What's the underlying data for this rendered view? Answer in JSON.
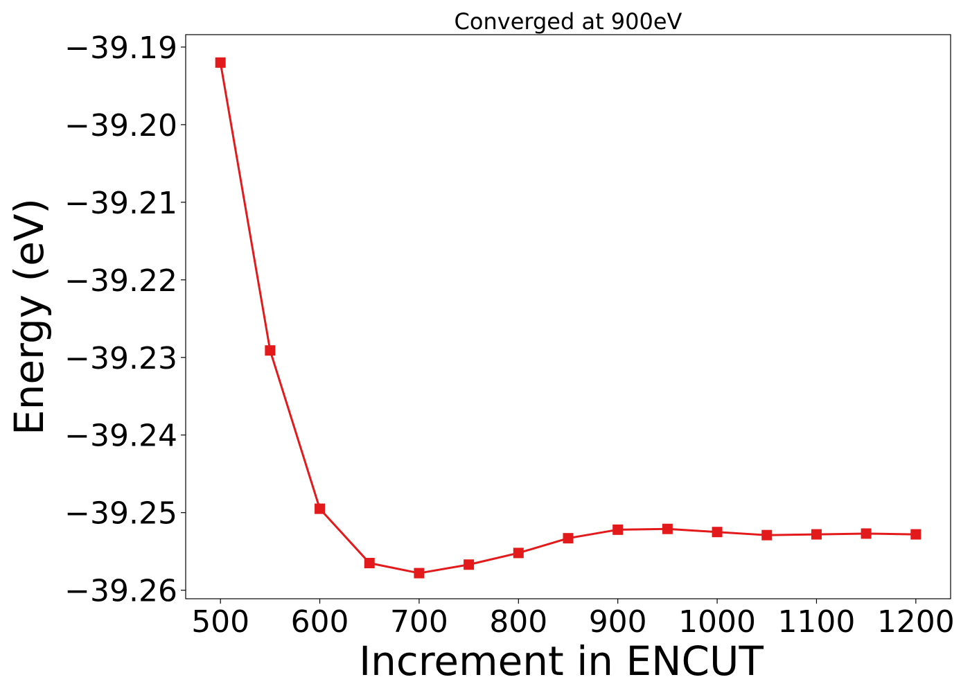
{
  "chart_data": {
    "type": "line",
    "title": "Converged at 900eV",
    "xlabel": "Increment in ENCUT",
    "ylabel": "Energy (eV)",
    "x": [
      500,
      550,
      600,
      650,
      700,
      750,
      800,
      850,
      900,
      950,
      1000,
      1050,
      1100,
      1150,
      1200
    ],
    "series": [
      {
        "values": [
          -39.192,
          -39.2291,
          -39.2495,
          -39.2565,
          -39.2578,
          -39.2567,
          -39.2552,
          -39.2533,
          -39.2522,
          -39.2521,
          -39.2525,
          -39.2529,
          -39.2528,
          -39.2527,
          -39.2528
        ],
        "color": "#e31a1c",
        "marker": "square"
      }
    ],
    "xticks": [
      500,
      600,
      700,
      800,
      900,
      1000,
      1100,
      1200
    ],
    "xtick_labels": [
      "500",
      "600",
      "700",
      "800",
      "900",
      "1000",
      "1100",
      "1200"
    ],
    "yticks": [
      -39.26,
      -39.25,
      -39.24,
      -39.23,
      -39.22,
      -39.21,
      -39.2,
      -39.19
    ],
    "ytick_labels": [
      "−39.26",
      "−39.25",
      "−39.24",
      "−39.23",
      "−39.22",
      "−39.21",
      "−39.20",
      "−39.19"
    ],
    "xlim": [
      465,
      1235
    ],
    "ylim": [
      -39.2611,
      -39.1884
    ],
    "grid": false,
    "legend": "none"
  }
}
